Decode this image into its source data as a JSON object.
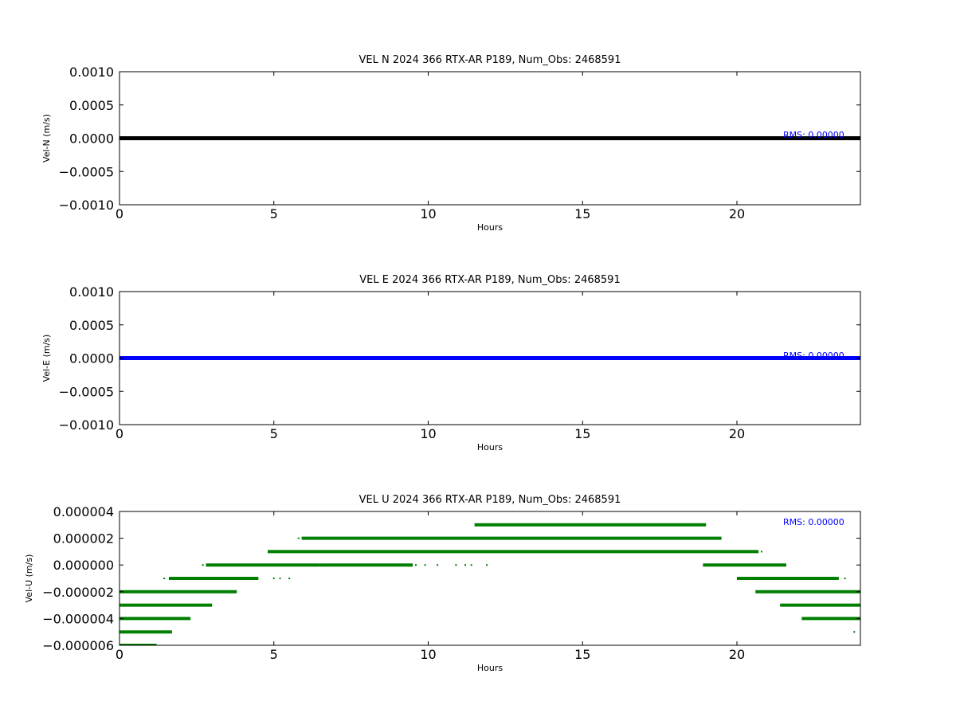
{
  "chart_data": [
    {
      "type": "line",
      "title": "VEL N 2024 366 RTX-AR  P189, Num_Obs: 2468591",
      "xlabel": "Hours",
      "ylabel": "Vel-N (m/s)",
      "xlim": [
        0,
        24
      ],
      "ylim": [
        -0.001,
        0.001
      ],
      "xticks": [
        0,
        5,
        10,
        15,
        20
      ],
      "xtick_labels": [
        "0",
        "5",
        "10",
        "15",
        "20"
      ],
      "yticks": [
        0.001,
        0.0005,
        0,
        -0.0005,
        -0.001
      ],
      "ytick_labels": [
        "0.0010",
        "0.0005",
        "0.0000",
        "−0.0005",
        "−0.0010"
      ],
      "grid": false,
      "annotation": "RMS:  0.00000",
      "annotation_color": "#0000ff",
      "series": [
        {
          "color": "#000000",
          "segments": [
            {
              "y": 0,
              "x": [
                0,
                24
              ]
            }
          ]
        }
      ]
    },
    {
      "type": "line",
      "title": "VEL E 2024 366 RTX-AR  P189, Num_Obs: 2468591",
      "xlabel": "Hours",
      "ylabel": "Vel-E (m/s)",
      "xlim": [
        0,
        24
      ],
      "ylim": [
        -0.001,
        0.001
      ],
      "xticks": [
        0,
        5,
        10,
        15,
        20
      ],
      "xtick_labels": [
        "0",
        "5",
        "10",
        "15",
        "20"
      ],
      "yticks": [
        0.001,
        0.0005,
        0,
        -0.0005,
        -0.001
      ],
      "ytick_labels": [
        "0.0010",
        "0.0005",
        "0.0000",
        "−0.0005",
        "−0.0010"
      ],
      "grid": false,
      "annotation": "RMS:  0.00000",
      "annotation_color": "#0000ff",
      "series": [
        {
          "color": "#0000ff",
          "segments": [
            {
              "y": 0,
              "x": [
                0,
                24
              ]
            }
          ]
        }
      ]
    },
    {
      "type": "scatter",
      "title": "VEL U 2024 366 RTX-AR  P189, Num_Obs: 2468591",
      "xlabel": "Hours",
      "ylabel": "Vel-U (m/s)",
      "xlim": [
        0,
        24
      ],
      "ylim": [
        -6e-06,
        4e-06
      ],
      "xticks": [
        0,
        5,
        10,
        15,
        20
      ],
      "xtick_labels": [
        "0",
        "5",
        "10",
        "15",
        "20"
      ],
      "yticks": [
        4e-06,
        2e-06,
        0,
        -2e-06,
        -4e-06,
        -6e-06
      ],
      "ytick_labels": [
        "0.000004",
        "0.000002",
        "0.000000",
        "−0.000002",
        "−0.000004",
        "−0.000006"
      ],
      "grid": false,
      "annotation": "RMS:  0.00000",
      "annotation_color": "#0000ff",
      "series": [
        {
          "color": "#007f00",
          "segments": [
            {
              "y": 3e-06,
              "x": [
                11.5,
                19.0
              ]
            },
            {
              "y": 2e-06,
              "x": [
                5.9,
                19.5
              ]
            },
            {
              "y": 1e-06,
              "x": [
                4.8,
                20.7
              ]
            },
            {
              "y": 0.0,
              "x": [
                2.8,
                6.5
              ]
            },
            {
              "y": 0.0,
              "x": [
                6.5,
                9.5
              ]
            },
            {
              "y": 0.0,
              "x": [
                18.9,
                21.6
              ]
            },
            {
              "y": -1e-06,
              "x": [
                1.6,
                4.5
              ]
            },
            {
              "y": -1e-06,
              "x": [
                20.0,
                23.3
              ]
            },
            {
              "y": -2e-06,
              "x": [
                0.0,
                3.8
              ]
            },
            {
              "y": -2e-06,
              "x": [
                20.6,
                24.0
              ]
            },
            {
              "y": -3e-06,
              "x": [
                0.0,
                3.0
              ]
            },
            {
              "y": -3e-06,
              "x": [
                21.4,
                24.0
              ]
            },
            {
              "y": -4e-06,
              "x": [
                0.0,
                2.3
              ]
            },
            {
              "y": -4e-06,
              "x": [
                22.1,
                24.0
              ]
            },
            {
              "y": -5e-06,
              "x": [
                0.0,
                1.7
              ]
            },
            {
              "y": -6e-06,
              "x": [
                0.0,
                1.2
              ]
            }
          ],
          "points": [
            {
              "x": 5.8,
              "y": 2e-06
            },
            {
              "x": 20.8,
              "y": 1e-06
            },
            {
              "x": 2.7,
              "y": 0.0
            },
            {
              "x": 9.6,
              "y": 0.0
            },
            {
              "x": 9.9,
              "y": 0.0
            },
            {
              "x": 10.3,
              "y": 0.0
            },
            {
              "x": 10.9,
              "y": 0.0
            },
            {
              "x": 11.2,
              "y": 0.0
            },
            {
              "x": 11.4,
              "y": 0.0
            },
            {
              "x": 11.9,
              "y": 0.0
            },
            {
              "x": 1.45,
              "y": -1e-06
            },
            {
              "x": 5.0,
              "y": -1e-06
            },
            {
              "x": 5.2,
              "y": -1e-06
            },
            {
              "x": 5.5,
              "y": -1e-06
            },
            {
              "x": 23.5,
              "y": -1e-06
            },
            {
              "x": 23.8,
              "y": -5e-06
            }
          ]
        }
      ]
    }
  ]
}
